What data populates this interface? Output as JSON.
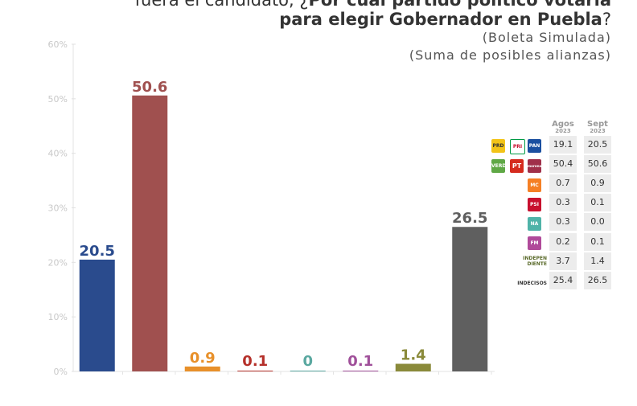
{
  "header": {
    "line1_plain": "fuera el candidato, ¿",
    "line1_bold": "Por cuál partido político votaría",
    "line2_bold": "para elegir Gobernador en Puebla",
    "line2_plain": "?",
    "sub1": "(Boleta Simulada)",
    "sub2": "(Suma de posibles alianzas)"
  },
  "chart_data": {
    "type": "bar",
    "ylim": [
      0,
      60
    ],
    "yticks": [
      "0%",
      "10%",
      "20%",
      "30%",
      "40%",
      "50%",
      "60%"
    ],
    "values": [
      20.5,
      50.6,
      0.9,
      0.1,
      0,
      0.1,
      1.4,
      26.5
    ],
    "value_labels": [
      "20.5",
      "50.6",
      "0.9",
      "0.1",
      "0",
      "0.1",
      "1.4",
      "26.5"
    ],
    "colors": [
      "#2a4b8d",
      "#a0504f",
      "#e8902a",
      "#b5302a",
      "#5aa8a0",
      "#a0509a",
      "#8a8a3a",
      "#5f5f5f"
    ],
    "grid": false
  },
  "table": {
    "col_agos": "Agos",
    "col_sept": "Sept",
    "year": "2023",
    "rows": [
      {
        "agos": "19.1",
        "sept": "20.5"
      },
      {
        "agos": "50.4",
        "sept": "50.6"
      },
      {
        "agos": "0.7",
        "sept": "0.9"
      },
      {
        "agos": "0.3",
        "sept": "0.1"
      },
      {
        "agos": "0.3",
        "sept": "0.0"
      },
      {
        "agos": "0.2",
        "sept": "0.1"
      },
      {
        "agos": "3.7",
        "sept": "1.4"
      },
      {
        "agos": "25.4",
        "sept": "26.5"
      }
    ],
    "logos": {
      "prd": "PRD",
      "pri": "PRI",
      "pan": "PAN",
      "verde": "VERDE",
      "pt": "PT",
      "morena": "morena",
      "mc": "MC",
      "psi": "PSI",
      "nueva": "NA",
      "fuerza": "FM",
      "independiente": "INDEPEN DIENTE",
      "indecisos": "INDECISOS"
    }
  }
}
